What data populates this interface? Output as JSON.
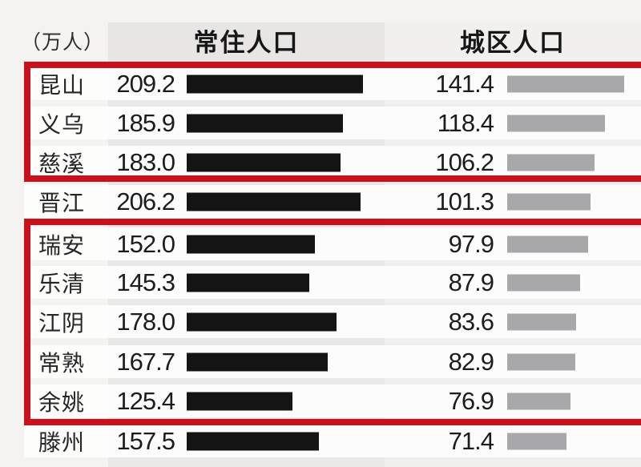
{
  "unit_label": "（万人）",
  "columns": {
    "resident": {
      "label": "常住人口"
    },
    "urban": {
      "label": "城区人口"
    }
  },
  "chart_data": {
    "type": "bar",
    "orientation": "horizontal",
    "unit": "万人",
    "categories": [
      "昆山",
      "义乌",
      "慈溪",
      "晋江",
      "瑞安",
      "乐清",
      "江阴",
      "常熟",
      "余姚",
      "滕州"
    ],
    "series": [
      {
        "name": "常住人口",
        "values": [
          209.2,
          185.9,
          183.0,
          206.2,
          152.0,
          145.3,
          178.0,
          167.7,
          125.4,
          157.5
        ],
        "bar_color": "#141414"
      },
      {
        "name": "城区人口",
        "values": [
          141.4,
          118.4,
          106.2,
          101.3,
          97.9,
          87.9,
          83.6,
          82.9,
          76.9,
          71.4
        ],
        "bar_color": "#a8a7a9"
      }
    ],
    "value_format": "one-decimal",
    "highlight_boxes": [
      {
        "rows": [
          "昆山",
          "义乌",
          "慈溪"
        ],
        "color": "#c9101b"
      },
      {
        "rows": [
          "瑞安",
          "乐清",
          "江阴",
          "常熟",
          "余姚"
        ],
        "color": "#c9101b"
      }
    ],
    "grid": false,
    "legend": false
  }
}
